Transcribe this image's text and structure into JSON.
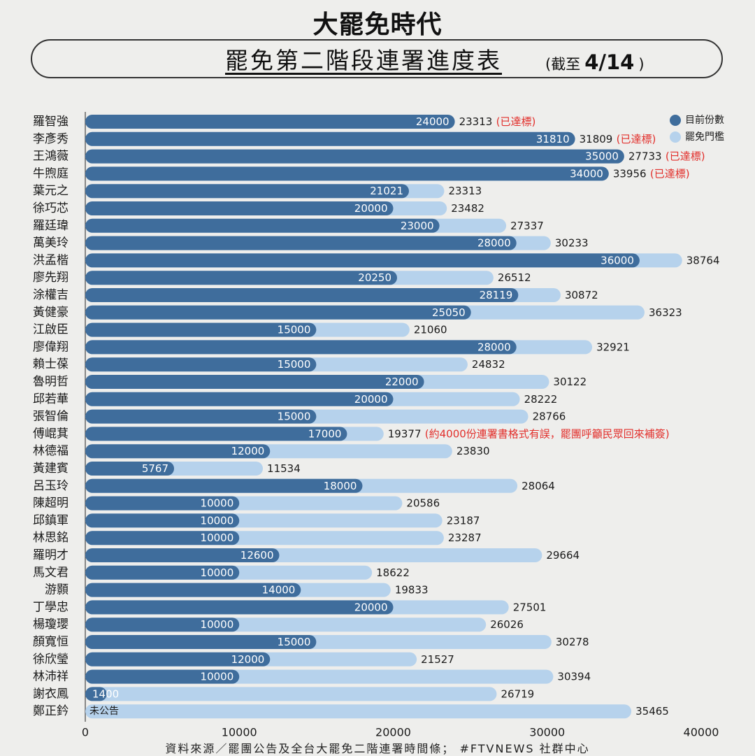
{
  "header": {
    "brand": "大罷免時代",
    "title": "罷免第二階段連署進度表",
    "asof_prefix": "(截至",
    "asof_date": "4/14",
    "asof_suffix": ")"
  },
  "footer": "資料來源／罷團公告及全台大罷免二階連署時間條； #FTVNEWS 社群中心",
  "colors": {
    "current": "#3f6d9c",
    "threshold": "#b6d2ec",
    "note": "#e2302c",
    "background": "#eeeeec"
  },
  "chart_data": {
    "type": "bar",
    "orientation": "horizontal",
    "xlim": [
      0,
      40000
    ],
    "x_ticks": [
      "0",
      "10000",
      "20000",
      "30000",
      "40000"
    ],
    "legend": {
      "placement": "top-right",
      "items": [
        "目前份數",
        "罷免門檻"
      ]
    },
    "categories": [
      "羅智強",
      "李彥秀",
      "王鴻薇",
      "牛煦庭",
      "葉元之",
      "徐巧芯",
      "羅廷瑋",
      "萬美玲",
      "洪孟楷",
      "廖先翔",
      "涂權吉",
      "黃健豪",
      "江啟臣",
      "廖偉翔",
      "賴士葆",
      "魯明哲",
      "邱若華",
      "張智倫",
      "傅崐萁",
      "林德福",
      "黃建賓",
      "呂玉玲",
      "陳超明",
      "邱鎮軍",
      "林思銘",
      "羅明才",
      "馬文君",
      "游顥",
      "丁學忠",
      "楊瓊瓔",
      "顏寬恒",
      "徐欣瑩",
      "林沛祥",
      "謝衣鳳",
      "鄭正鈐"
    ],
    "series": [
      {
        "name": "目前份數",
        "values": [
          24000,
          31810,
          35000,
          34000,
          21021,
          20000,
          23000,
          28000,
          36000,
          20250,
          28119,
          25050,
          15000,
          28000,
          15000,
          22000,
          20000,
          15000,
          17000,
          12000,
          5767,
          18000,
          10000,
          10000,
          10000,
          12600,
          10000,
          14000,
          20000,
          10000,
          15000,
          12000,
          10000,
          1400,
          0
        ]
      },
      {
        "name": "罷免門檻",
        "values": [
          23313,
          31809,
          27733,
          33956,
          23313,
          23482,
          27337,
          30233,
          38764,
          26512,
          30872,
          36323,
          21060,
          32921,
          24832,
          30122,
          28222,
          28766,
          19377,
          23830,
          11534,
          28064,
          20586,
          23187,
          23287,
          29664,
          18622,
          19833,
          27501,
          26026,
          30278,
          21527,
          30394,
          26719,
          35465
        ]
      }
    ],
    "value_labels": [
      "24000",
      "31810",
      "35000",
      "34000",
      "21021",
      "20000",
      "23000",
      "28000",
      "36000",
      "20250",
      "28119",
      "25050",
      "15000",
      "28000",
      "15000",
      "22000",
      "20000",
      "15000",
      "17000",
      "12000",
      "5767",
      "18000",
      "10000",
      "10000",
      "10000",
      "12600",
      "10000",
      "14000",
      "20000",
      "10000",
      "15000",
      "12000",
      "10000",
      "1400",
      "未公告"
    ],
    "annotations": [
      "(已達標)",
      "(已達標)",
      "(已達標)",
      "(已達標)",
      "",
      "",
      "",
      "",
      "",
      "",
      "",
      "",
      "",
      "",
      "",
      "",
      "",
      "",
      "(約4000份連署書格式有誤，罷團呼籲民眾回來補簽)",
      "",
      "",
      "",
      "",
      "",
      "",
      "",
      "",
      "",
      "",
      "",
      "",
      "",
      "",
      "",
      ""
    ]
  }
}
